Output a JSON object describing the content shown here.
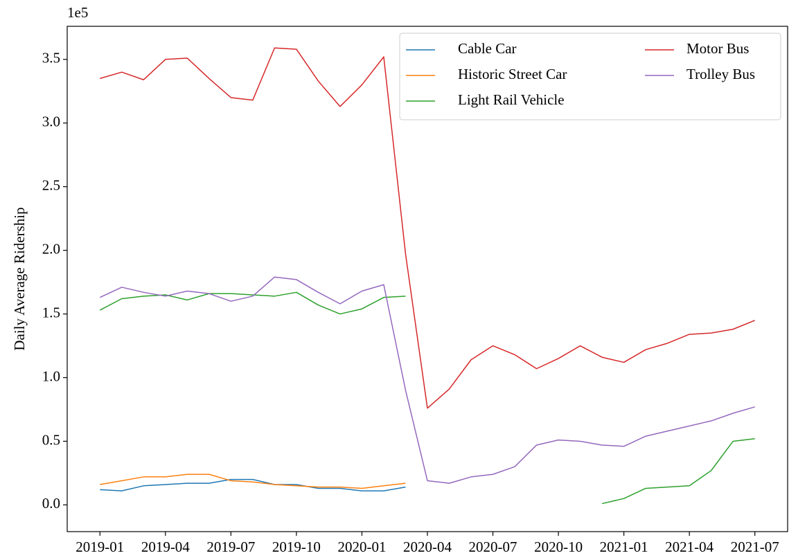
{
  "chart_data": {
    "type": "line",
    "y_label": "Daily Average Ridership",
    "y_offset_label": "1e5",
    "categories": [
      "2019-01",
      null,
      null,
      "2019-04",
      null,
      null,
      "2019-07",
      null,
      null,
      "2019-10",
      null,
      null,
      "2020-01",
      null,
      null,
      "2020-04",
      null,
      null,
      "2020-07",
      null,
      null,
      "2020-10",
      null,
      null,
      "2021-01",
      null,
      null,
      "2021-04",
      null,
      null,
      "2021-07"
    ],
    "ylim": [
      -0.21,
      3.76
    ],
    "yticks": [
      {
        "value": 0,
        "label": "0.0"
      },
      0.5,
      {
        "value": 1,
        "label": "1.0"
      },
      1.5,
      {
        "value": 2,
        "label": "2.0"
      },
      2.5,
      {
        "value": 3,
        "label": "3.0"
      },
      3.5
    ],
    "grid": false,
    "legend": "upper right",
    "series": [
      {
        "name": "Cable Car",
        "color": "#1f77b4",
        "values": [
          0.12,
          0.11,
          0.15,
          0.16,
          0.17,
          0.17,
          0.2,
          0.2,
          0.16,
          0.16,
          0.13,
          0.13,
          0.11,
          0.11,
          0.14,
          null,
          null,
          null,
          null,
          null,
          null,
          null,
          null,
          null,
          null,
          null,
          null,
          null,
          null,
          null,
          null
        ]
      },
      {
        "name": "Historic Street Car",
        "color": "#ff7f0e",
        "values": [
          0.16,
          0.19,
          0.22,
          0.22,
          0.24,
          0.24,
          0.19,
          0.18,
          0.16,
          0.15,
          0.14,
          0.14,
          0.13,
          0.15,
          0.17,
          null,
          null,
          null,
          null,
          null,
          null,
          null,
          null,
          null,
          null,
          null,
          null,
          null,
          null,
          null,
          null
        ]
      },
      {
        "name": "Light Rail Vehicle",
        "color": "#2ca02c",
        "values": [
          1.53,
          1.62,
          1.64,
          1.65,
          1.61,
          1.66,
          1.66,
          1.65,
          1.64,
          1.67,
          1.57,
          1.5,
          1.54,
          1.63,
          1.64,
          null,
          null,
          null,
          null,
          null,
          null,
          null,
          null,
          0.01,
          0.05,
          0.13,
          0.14,
          0.15,
          0.27,
          0.5,
          0.52
        ]
      },
      {
        "name": "Motor Bus",
        "color": "#d62728",
        "values": [
          3.35,
          3.4,
          3.34,
          3.5,
          3.51,
          3.35,
          3.2,
          3.18,
          3.59,
          3.58,
          3.33,
          3.13,
          3.3,
          3.52,
          1.97,
          0.76,
          0.91,
          1.14,
          1.25,
          1.18,
          1.07,
          1.15,
          1.25,
          1.16,
          1.12,
          1.22,
          1.27,
          1.34,
          1.35,
          1.38,
          1.45
        ]
      },
      {
        "name": "Trolley Bus",
        "color": "#9467bd",
        "values": [
          1.63,
          1.71,
          1.67,
          1.64,
          1.68,
          1.66,
          1.6,
          1.64,
          1.79,
          1.77,
          1.67,
          1.58,
          1.68,
          1.73,
          0.9,
          0.19,
          0.17,
          0.22,
          0.24,
          0.3,
          0.47,
          0.51,
          0.5,
          0.47,
          0.46,
          0.54,
          0.58,
          0.62,
          0.66,
          0.72,
          0.77
        ]
      }
    ]
  }
}
